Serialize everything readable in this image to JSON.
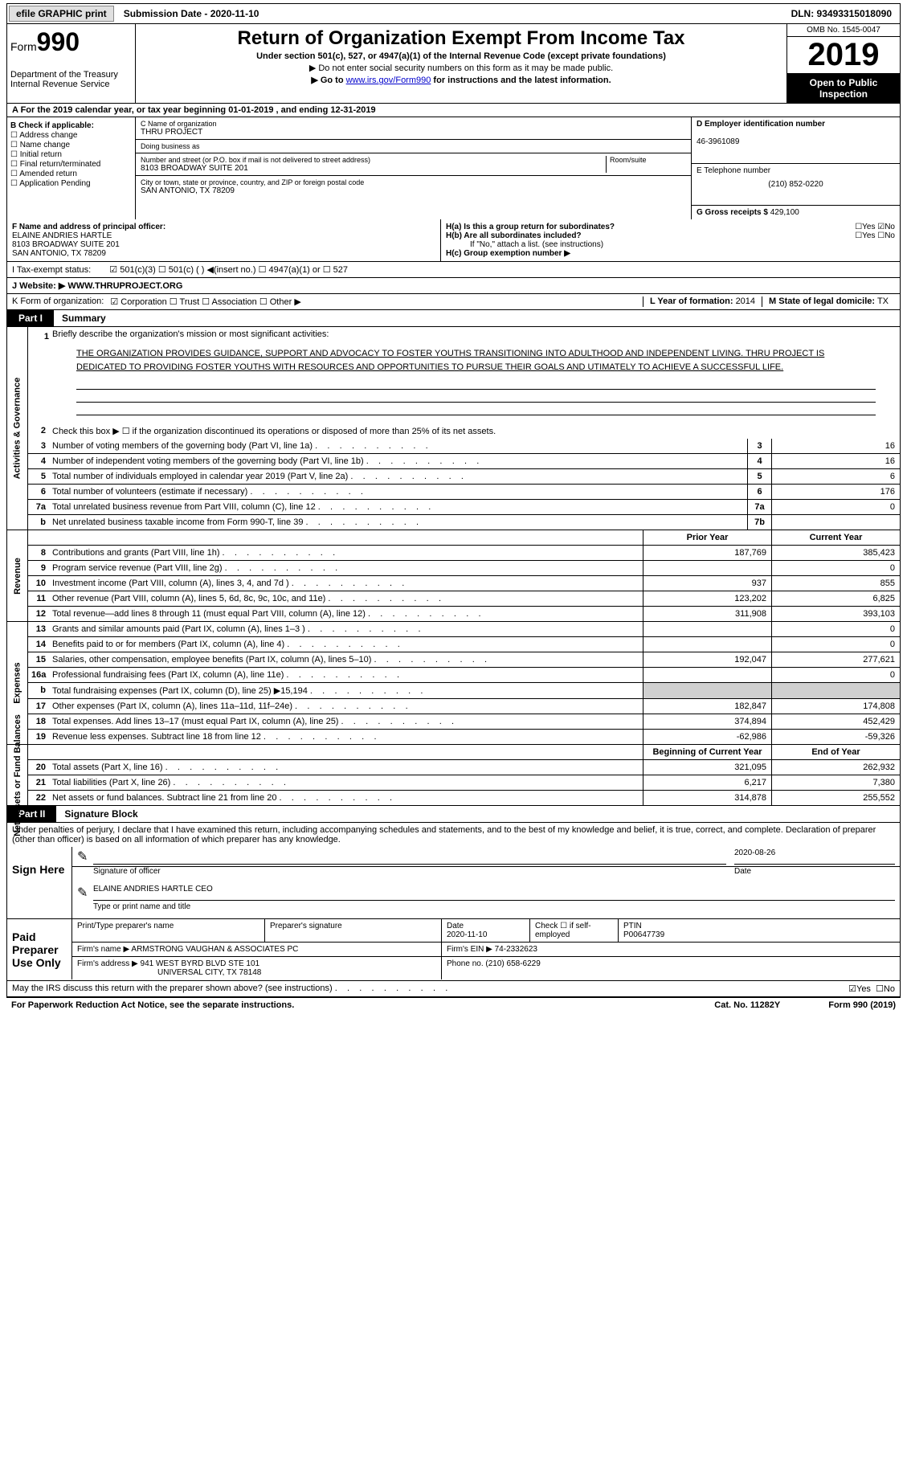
{
  "topbar": {
    "efile": "efile GRAPHIC print",
    "submission": "Submission Date - 2020-11-10",
    "dln": "DLN: 93493315018090"
  },
  "header": {
    "form_prefix": "Form",
    "form_number": "990",
    "dept": "Department of the Treasury\nInternal Revenue Service",
    "title": "Return of Organization Exempt From Income Tax",
    "subtitle": "Under section 501(c), 527, or 4947(a)(1) of the Internal Revenue Code (except private foundations)",
    "instr1": "▶ Do not enter social security numbers on this form as it may be made public.",
    "instr2_pre": "▶ Go to ",
    "instr2_link": "www.irs.gov/Form990",
    "instr2_post": " for instructions and the latest information.",
    "omb": "OMB No. 1545-0047",
    "year": "2019",
    "open": "Open to Public Inspection"
  },
  "lineA": "A For the 2019 calendar year, or tax year beginning 01-01-2019    , and ending 12-31-2019",
  "checkB": {
    "label": "B Check if applicable:",
    "items": [
      "☐ Address change",
      "☐ Name change",
      "☐ Initial return",
      "☐ Final return/terminated",
      "☐ Amended return",
      "☐ Application Pending"
    ]
  },
  "C": {
    "name_lbl": "C Name of organization",
    "name": "THRU PROJECT",
    "dba_lbl": "Doing business as",
    "dba": "",
    "addr_lbl": "Number and street (or P.O. box if mail is not delivered to street address)",
    "room_lbl": "Room/suite",
    "addr": "8103 BROADWAY SUITE 201",
    "city_lbl": "City or town, state or province, country, and ZIP or foreign postal code",
    "city": "SAN ANTONIO, TX  78209"
  },
  "D": {
    "lbl": "D Employer identification number",
    "val": "46-3961089"
  },
  "E": {
    "lbl": "E Telephone number",
    "val": "(210) 852-0220"
  },
  "G": {
    "lbl": "G Gross receipts $",
    "val": "429,100"
  },
  "F": {
    "lbl": "F  Name and address of principal officer:",
    "name": "ELAINE ANDRIES HARTLE",
    "addr1": "8103 BROADWAY SUITE 201",
    "addr2": "SAN ANTONIO, TX  78209"
  },
  "H": {
    "a_lbl": "H(a)  Is this a group return for subordinates?",
    "a_yes": "☐Yes",
    "a_no": "☑No",
    "b_lbl": "H(b)  Are all subordinates included?",
    "b_yes": "☐Yes",
    "b_no": "☐No",
    "b_note": "If \"No,\" attach a list. (see instructions)",
    "c_lbl": "H(c)  Group exemption number ▶"
  },
  "I": {
    "lbl": "I    Tax-exempt status:",
    "opts": "☑ 501(c)(3)    ☐ 501(c) (  ) ◀(insert no.)    ☐ 4947(a)(1) or   ☐ 527"
  },
  "J": {
    "lbl": "J    Website: ▶",
    "val": "WWW.THRUPROJECT.ORG"
  },
  "K": {
    "lbl": "K Form of organization:",
    "opts": "☑ Corporation  ☐ Trust  ☐ Association  ☐ Other ▶"
  },
  "L": {
    "lbl": "L Year of formation:",
    "val": "2014"
  },
  "M": {
    "lbl": "M State of legal domicile:",
    "val": "TX"
  },
  "partI": {
    "tab": "Part I",
    "title": "Summary"
  },
  "mission": {
    "num": "1",
    "lbl": "Briefly describe the organization's mission or most significant activities:",
    "text": "THE ORGANIZATION PROVIDES GUIDANCE, SUPPORT AND ADVOCACY TO FOSTER YOUTHS TRANSITIONING INTO ADULTHOOD AND INDEPENDENT LIVING. THRU PROJECT IS DEDICATED TO PROVIDING FOSTER YOUTHS WITH RESOURCES AND OPPORTUNITIES TO PURSUE THEIR GOALS AND UTIMATELY TO ACHIEVE A SUCCESSFUL LIFE."
  },
  "line2": {
    "num": "2",
    "text": "Check this box ▶ ☐ if the organization discontinued its operations or disposed of more than 25% of its net assets."
  },
  "gov_lines": [
    {
      "n": "3",
      "t": "Number of voting members of the governing body (Part VI, line 1a)",
      "box": "3",
      "v": "16"
    },
    {
      "n": "4",
      "t": "Number of independent voting members of the governing body (Part VI, line 1b)",
      "box": "4",
      "v": "16"
    },
    {
      "n": "5",
      "t": "Total number of individuals employed in calendar year 2019 (Part V, line 2a)",
      "box": "5",
      "v": "6"
    },
    {
      "n": "6",
      "t": "Total number of volunteers (estimate if necessary)",
      "box": "6",
      "v": "176"
    },
    {
      "n": "7a",
      "t": "Total unrelated business revenue from Part VIII, column (C), line 12",
      "box": "7a",
      "v": "0"
    },
    {
      "n": "b",
      "t": "Net unrelated business taxable income from Form 990-T, line 39",
      "box": "7b",
      "v": ""
    }
  ],
  "col_hdrs": {
    "prior": "Prior Year",
    "current": "Current Year"
  },
  "revenue": [
    {
      "n": "8",
      "t": "Contributions and grants (Part VIII, line 1h)",
      "p": "187,769",
      "c": "385,423"
    },
    {
      "n": "9",
      "t": "Program service revenue (Part VIII, line 2g)",
      "p": "",
      "c": "0"
    },
    {
      "n": "10",
      "t": "Investment income (Part VIII, column (A), lines 3, 4, and 7d )",
      "p": "937",
      "c": "855"
    },
    {
      "n": "11",
      "t": "Other revenue (Part VIII, column (A), lines 5, 6d, 8c, 9c, 10c, and 11e)",
      "p": "123,202",
      "c": "6,825"
    },
    {
      "n": "12",
      "t": "Total revenue—add lines 8 through 11 (must equal Part VIII, column (A), line 12)",
      "p": "311,908",
      "c": "393,103"
    }
  ],
  "expenses": [
    {
      "n": "13",
      "t": "Grants and similar amounts paid (Part IX, column (A), lines 1–3 )",
      "p": "",
      "c": "0"
    },
    {
      "n": "14",
      "t": "Benefits paid to or for members (Part IX, column (A), line 4)",
      "p": "",
      "c": "0"
    },
    {
      "n": "15",
      "t": "Salaries, other compensation, employee benefits (Part IX, column (A), lines 5–10)",
      "p": "192,047",
      "c": "277,621"
    },
    {
      "n": "16a",
      "t": "Professional fundraising fees (Part IX, column (A), line 11e)",
      "p": "",
      "c": "0"
    },
    {
      "n": "b",
      "t": "Total fundraising expenses (Part IX, column (D), line 25) ▶15,194",
      "p": "GRAY",
      "c": "GRAY"
    },
    {
      "n": "17",
      "t": "Other expenses (Part IX, column (A), lines 11a–11d, 11f–24e)",
      "p": "182,847",
      "c": "174,808"
    },
    {
      "n": "18",
      "t": "Total expenses. Add lines 13–17 (must equal Part IX, column (A), line 25)",
      "p": "374,894",
      "c": "452,429"
    },
    {
      "n": "19",
      "t": "Revenue less expenses. Subtract line 18 from line 12",
      "p": "-62,986",
      "c": "-59,326"
    }
  ],
  "bal_hdrs": {
    "begin": "Beginning of Current Year",
    "end": "End of Year"
  },
  "balances": [
    {
      "n": "20",
      "t": "Total assets (Part X, line 16)",
      "p": "321,095",
      "c": "262,932"
    },
    {
      "n": "21",
      "t": "Total liabilities (Part X, line 26)",
      "p": "6,217",
      "c": "7,380"
    },
    {
      "n": "22",
      "t": "Net assets or fund balances. Subtract line 21 from line 20",
      "p": "314,878",
      "c": "255,552"
    }
  ],
  "vtabs": {
    "gov": "Activities & Governance",
    "rev": "Revenue",
    "exp": "Expenses",
    "bal": "Net Assets or Fund Balances"
  },
  "partII": {
    "tab": "Part II",
    "title": "Signature Block"
  },
  "perjury": "Under penalties of perjury, I declare that I have examined this return, including accompanying schedules and statements, and to the best of my knowledge and belief, it is true, correct, and complete. Declaration of preparer (other than officer) is based on all information of which preparer has any knowledge.",
  "sign": {
    "label": "Sign Here",
    "sig_lbl": "Signature of officer",
    "date_lbl": "Date",
    "date": "2020-08-26",
    "name": "ELAINE ANDRIES HARTLE CEO",
    "name_lbl": "Type or print name and title"
  },
  "paid": {
    "label": "Paid Preparer Use Only",
    "col1": "Print/Type preparer's name",
    "col2": "Preparer's signature",
    "col3": "Date",
    "date": "2020-11-10",
    "col4": "Check ☐ if self-employed",
    "col5": "PTIN",
    "ptin": "P00647739",
    "firm_lbl": "Firm's name    ▶",
    "firm": "ARMSTRONG VAUGHAN & ASSOCIATES PC",
    "ein_lbl": "Firm's EIN ▶",
    "ein": "74-2332623",
    "addr_lbl": "Firm's address ▶",
    "addr": "941 WEST BYRD BLVD STE 101",
    "addr2": "UNIVERSAL CITY, TX  78148",
    "phone_lbl": "Phone no.",
    "phone": "(210) 658-6229"
  },
  "irs_q": "May the IRS discuss this return with the preparer shown above? (see instructions)",
  "irs_yes": "☑Yes",
  "irs_no": "☐No",
  "footer": {
    "left": "For Paperwork Reduction Act Notice, see the separate instructions.",
    "mid": "Cat. No. 11282Y",
    "right": "Form 990 (2019)"
  },
  "colors": {
    "link": "#0000cc",
    "check": "#0066cc",
    "gray": "#d0d0d0"
  }
}
